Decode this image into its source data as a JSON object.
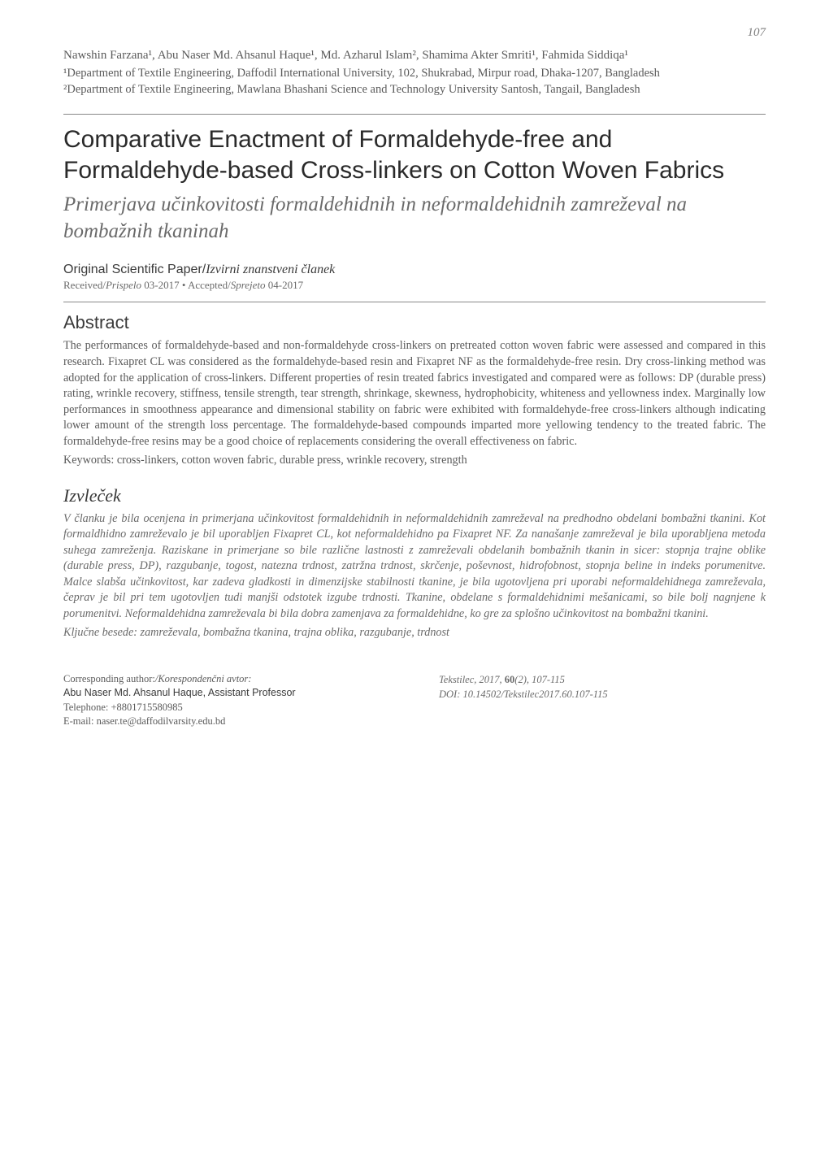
{
  "page_number": "107",
  "authors_line": "Nawshin Farzana¹, Abu Naser Md. Ahsanul Haque¹, Md. Azharul Islam², Shamima Akter Smriti¹, Fahmida Siddiqa¹",
  "affiliations": {
    "a1": "¹Department of Textile Engineering, Daffodil International University, 102, Shukrabad, Mirpur road, Dhaka-1207, Bangladesh",
    "a2": "²Department of Textile Engineering, Mawlana Bhashani Science and Technology University Santosh, Tangail, Bangladesh"
  },
  "title_en": "Comparative Enactment of Formaldehyde-free and Formaldehyde-based Cross-linkers on Cotton Woven Fabrics",
  "title_sl": "Primerjava učinkovitosti formaldehidnih in neformaldehidnih zamreževal na bombažnih tkaninah",
  "paper_type_en": "Original Scientific Paper",
  "paper_type_sl": "Izvirni znanstveni članek",
  "received_en1": "Received/",
  "received_sl1": "Prispelo ",
  "received_date1": "03-2017",
  "received_bullet": " • ",
  "received_en2": "Accepted/",
  "received_sl2": "Sprejeto ",
  "received_date2": "04-2017",
  "abstract_heading": "Abstract",
  "abstract_body": "The performances of formaldehyde-based and non-formaldehyde cross-linkers on pretreated cotton woven fabric were assessed and compared in this research. Fixapret CL was considered as the formaldehyde-based resin and Fixapret NF as the formaldehyde-free resin. Dry cross-linking method was adopted for the application of cross-linkers. Different properties of resin treated fabrics investigated and compared were as follows: DP (durable press) rating, wrinkle recovery, stiffness, tensile strength, tear strength, shrinkage, skewness, hydrophobicity, whiteness and yellowness index. Marginally low performances in smoothness appearance and dimensional stability on fabric were exhibited with formaldehyde-free cross-linkers although indicating lower amount of the strength loss percentage. The formaldehyde-based compounds imparted more yellowing tendency to the treated fabric. The formaldehyde-free resins may be a good choice of replacements considering the overall effectiveness on fabric.",
  "keywords_label": "Keywords: ",
  "keywords": "cross-linkers, cotton woven fabric, durable press, wrinkle recovery, strength",
  "izvlecek_heading": "Izvleček",
  "izvlecek_body": "V članku je bila ocenjena in primerjana učinkovitost formaldehidnih in neformaldehidnih zamreževal na predhodno obdelani bombažni tkanini. Kot formaldhidno zamreževalo je bil uporabljen Fixapret CL, kot neformaldehidno pa Fixapret NF. Za nanašanje zamreževal je bila uporabljena metoda suhega zamreženja. Raziskane in primerjane so bile različne lastnosti z zamreževali obdelanih bombažnih tkanin in sicer: stopnja trajne oblike (durable press, DP), razgubanje, togost, natezna trdnost, zatržna trdnost, skrčenje, poševnost, hidrofobnost, stopnja beline in indeks porumenitve. Malce slabša učinkovitost, kar zadeva gladkosti in dimenzijske stabilnosti tkanine, je bila ugotovljena pri uporabi neformaldehidnega zamreževala, čeprav je bil pri tem ugotovljen tudi manjši odstotek izgube trdnosti. Tkanine, obdelane s formaldehidnimi mešanicami, so bile bolj nagnjene k porumenitvi. Neformaldehidna zamreževala bi bila dobra zamenjava za formaldehidne, ko gre za splošno učinkovitost na bombažni tkanini.",
  "kljucne_label": "Ključne besede: ",
  "kljucne": "zamreževala, bombažna tkanina, trajna oblika, razgubanje, trdnost",
  "corresponding": {
    "label_en": "Corresponding author:",
    "label_sl": "/Korespondenčni avtor:",
    "name": "Abu Naser Md. Ahsanul Haque, Assistant Professor",
    "phone_label": "Telephone: ",
    "phone": "+8801715580985",
    "email_label": "E-mail: ",
    "email": "naser.te@daffodilvarsity.edu.bd"
  },
  "citation": {
    "journal": "Tekstilec, 2017, ",
    "vol": "60",
    "issue_pages": "(2), 107-115",
    "doi_label": "DOI: ",
    "doi": "10.14502/Tekstilec2017.60.107-115"
  },
  "colors": {
    "background": "#ffffff",
    "body_text": "#5a5a5a",
    "heading": "#2a2a2a",
    "muted": "#6a6a6a",
    "divider": "#888888"
  },
  "typography": {
    "title_en_fontsize": 30,
    "title_sl_fontsize": 25,
    "section_heading_fontsize": 22,
    "body_fontsize": 14.2,
    "footer_fontsize": 12.5,
    "body_lineheight": 1.38
  }
}
